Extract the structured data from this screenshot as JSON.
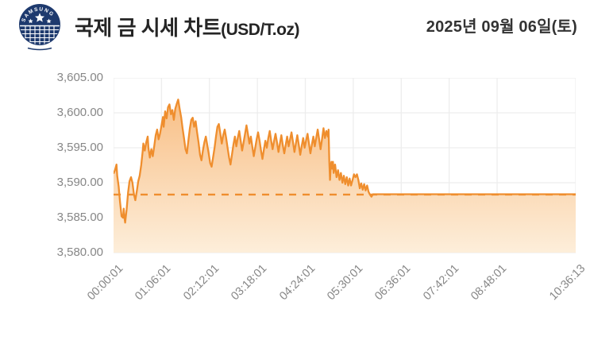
{
  "header": {
    "logo_text": "SAMSUNG",
    "title_ko": "국제 금 시세 차트",
    "title_unit": "(USD/T.oz)",
    "date": "2025년 09월 06일(토)"
  },
  "chart_data": {
    "type": "area",
    "title": "국제 금 시세 차트(USD/T.oz)",
    "unit": "USD/T.oz",
    "grid": true,
    "legend": "none",
    "ylim": [
      3580,
      3605
    ],
    "y_ticks": [
      {
        "label": "3,605.00",
        "value": 3605
      },
      {
        "label": "3,600.00",
        "value": 3600
      },
      {
        "label": "3,595.00",
        "value": 3595
      },
      {
        "label": "3,590.00",
        "value": 3590
      },
      {
        "label": "3,585.00",
        "value": 3585
      },
      {
        "label": "3,580.00",
        "value": 3580
      }
    ],
    "xlim_minutes": [
      0,
      636.2
    ],
    "x_ticks": [
      {
        "label": "00:00:01",
        "min": 0
      },
      {
        "label": "01:06:01",
        "min": 66
      },
      {
        "label": "02:12:01",
        "min": 132
      },
      {
        "label": "03:18:01",
        "min": 198
      },
      {
        "label": "04:24:01",
        "min": 264
      },
      {
        "label": "05:30:01",
        "min": 330
      },
      {
        "label": "06:36:01",
        "min": 396
      },
      {
        "label": "07:42:01",
        "min": 462
      },
      {
        "label": "08:48:01",
        "min": 528
      },
      {
        "label": "10:36:13",
        "min": 636.2
      }
    ],
    "reference_line": {
      "value": 3588.3,
      "style": "dashed"
    },
    "colors": {
      "line": "#ef8e2e",
      "dashed": "#ef8e2e",
      "fill_top": "#f8bf86",
      "fill_bottom": "#fdeeda",
      "grid": "#ededed",
      "axis_text": "#878787",
      "logo_navy": "#1e3a6e"
    },
    "series": [
      {
        "name": "gold-price-usd-toz",
        "points": [
          [
            0,
            3591.3
          ],
          [
            2,
            3591.8
          ],
          [
            4,
            3592.6
          ],
          [
            5,
            3591.0
          ],
          [
            7,
            3589.5
          ],
          [
            9,
            3587.2
          ],
          [
            11,
            3585.2
          ],
          [
            13,
            3585.0
          ],
          [
            14,
            3586.3
          ],
          [
            15,
            3585.0
          ],
          [
            16,
            3584.3
          ],
          [
            18,
            3586.2
          ],
          [
            20,
            3588.6
          ],
          [
            22,
            3590.2
          ],
          [
            24,
            3590.8
          ],
          [
            26,
            3590.0
          ],
          [
            28,
            3588.4
          ],
          [
            30,
            3587.5
          ],
          [
            32,
            3588.8
          ],
          [
            34,
            3590.2
          ],
          [
            36,
            3591.0
          ],
          [
            38,
            3592.5
          ],
          [
            40,
            3594.4
          ],
          [
            41,
            3595.6
          ],
          [
            43,
            3594.6
          ],
          [
            45,
            3595.8
          ],
          [
            47,
            3596.6
          ],
          [
            48,
            3595.0
          ],
          [
            50,
            3593.6
          ],
          [
            52,
            3594.8
          ],
          [
            54,
            3593.8
          ],
          [
            56,
            3595.2
          ],
          [
            58,
            3596.8
          ],
          [
            60,
            3597.6
          ],
          [
            62,
            3596.2
          ],
          [
            64,
            3597.0
          ],
          [
            66,
            3598.2
          ],
          [
            68,
            3599.4
          ],
          [
            69,
            3598.0
          ],
          [
            71,
            3600.2
          ],
          [
            73,
            3599.2
          ],
          [
            75,
            3600.8
          ],
          [
            77,
            3601.2
          ],
          [
            79,
            3599.8
          ],
          [
            81,
            3600.4
          ],
          [
            83,
            3599.0
          ],
          [
            85,
            3600.6
          ],
          [
            87,
            3601.3
          ],
          [
            89,
            3601.9
          ],
          [
            91,
            3600.6
          ],
          [
            93,
            3599.4
          ],
          [
            95,
            3597.8
          ],
          [
            97,
            3596.4
          ],
          [
            99,
            3594.8
          ],
          [
            101,
            3594.2
          ],
          [
            103,
            3596.0
          ],
          [
            105,
            3597.8
          ],
          [
            107,
            3599.0
          ],
          [
            109,
            3599.3
          ],
          [
            111,
            3598.0
          ],
          [
            113,
            3598.8
          ],
          [
            115,
            3597.2
          ],
          [
            117,
            3595.8
          ],
          [
            119,
            3594.0
          ],
          [
            121,
            3593.2
          ],
          [
            123,
            3594.6
          ],
          [
            125,
            3595.8
          ],
          [
            127,
            3596.6
          ],
          [
            129,
            3595.4
          ],
          [
            131,
            3594.2
          ],
          [
            133,
            3592.8
          ],
          [
            135,
            3592.3
          ],
          [
            137,
            3593.6
          ],
          [
            139,
            3595.0
          ],
          [
            141,
            3596.6
          ],
          [
            143,
            3598.0
          ],
          [
            145,
            3598.4
          ],
          [
            147,
            3597.0
          ],
          [
            149,
            3595.6
          ],
          [
            151,
            3596.8
          ],
          [
            153,
            3597.6
          ],
          [
            155,
            3596.4
          ],
          [
            157,
            3595.0
          ],
          [
            159,
            3593.6
          ],
          [
            161,
            3592.6
          ],
          [
            163,
            3594.0
          ],
          [
            165,
            3595.4
          ],
          [
            167,
            3596.6
          ],
          [
            169,
            3595.2
          ],
          [
            171,
            3596.4
          ],
          [
            173,
            3597.4
          ],
          [
            175,
            3596.0
          ],
          [
            177,
            3594.6
          ],
          [
            179,
            3595.8
          ],
          [
            181,
            3597.0
          ],
          [
            183,
            3598.2
          ],
          [
            185,
            3597.0
          ],
          [
            187,
            3595.6
          ],
          [
            189,
            3596.6
          ],
          [
            191,
            3595.2
          ],
          [
            193,
            3593.8
          ],
          [
            195,
            3595.0
          ],
          [
            197,
            3596.2
          ],
          [
            199,
            3597.2
          ],
          [
            201,
            3596.0
          ],
          [
            203,
            3594.6
          ],
          [
            205,
            3593.4
          ],
          [
            207,
            3594.8
          ],
          [
            209,
            3596.0
          ],
          [
            211,
            3595.0
          ],
          [
            213,
            3596.4
          ],
          [
            215,
            3597.4
          ],
          [
            217,
            3596.0
          ],
          [
            219,
            3594.8
          ],
          [
            221,
            3596.0
          ],
          [
            223,
            3597.0
          ],
          [
            225,
            3595.8
          ],
          [
            227,
            3594.4
          ],
          [
            229,
            3595.6
          ],
          [
            231,
            3596.8
          ],
          [
            233,
            3595.4
          ],
          [
            235,
            3594.2
          ],
          [
            237,
            3595.4
          ],
          [
            239,
            3596.6
          ],
          [
            241,
            3595.2
          ],
          [
            243,
            3596.2
          ],
          [
            245,
            3597.2
          ],
          [
            247,
            3595.8
          ],
          [
            249,
            3594.4
          ],
          [
            251,
            3595.6
          ],
          [
            253,
            3596.8
          ],
          [
            255,
            3595.4
          ],
          [
            257,
            3594.0
          ],
          [
            259,
            3595.2
          ],
          [
            261,
            3596.4
          ],
          [
            263,
            3595.0
          ],
          [
            265,
            3596.0
          ],
          [
            267,
            3597.0
          ],
          [
            269,
            3595.6
          ],
          [
            271,
            3594.2
          ],
          [
            273,
            3595.4
          ],
          [
            275,
            3596.6
          ],
          [
            277,
            3595.2
          ],
          [
            279,
            3596.4
          ],
          [
            281,
            3597.6
          ],
          [
            283,
            3596.2
          ],
          [
            285,
            3594.8
          ],
          [
            287,
            3596.2
          ],
          [
            289,
            3597.8
          ],
          [
            291,
            3596.4
          ],
          [
            293,
            3597.4
          ],
          [
            295,
            3596.6
          ],
          [
            296,
            3597.6
          ],
          [
            297,
            3593.0
          ],
          [
            298,
            3590.4
          ],
          [
            299,
            3592.4
          ],
          [
            300,
            3593.0
          ],
          [
            301,
            3592.0
          ],
          [
            302,
            3593.0
          ],
          [
            303,
            3591.4
          ],
          [
            305,
            3592.6
          ],
          [
            307,
            3590.8
          ],
          [
            309,
            3591.8
          ],
          [
            311,
            3590.4
          ],
          [
            313,
            3591.4
          ],
          [
            315,
            3590.0
          ],
          [
            317,
            3591.0
          ],
          [
            319,
            3589.8
          ],
          [
            321,
            3590.8
          ],
          [
            323,
            3589.6
          ],
          [
            325,
            3590.6
          ],
          [
            327,
            3589.6
          ],
          [
            329,
            3590.4
          ],
          [
            331,
            3591.2
          ],
          [
            333,
            3590.8
          ],
          [
            335,
            3591.2
          ],
          [
            337,
            3590.4
          ],
          [
            339,
            3589.2
          ],
          [
            341,
            3589.9
          ],
          [
            343,
            3589.0
          ],
          [
            345,
            3589.8
          ],
          [
            347,
            3588.9
          ],
          [
            349,
            3589.6
          ],
          [
            351,
            3588.7
          ],
          [
            353,
            3588.3
          ],
          [
            355,
            3588.0
          ],
          [
            357,
            3588.35
          ],
          [
            360,
            3588.35
          ],
          [
            636.2,
            3588.35
          ]
        ]
      }
    ]
  }
}
